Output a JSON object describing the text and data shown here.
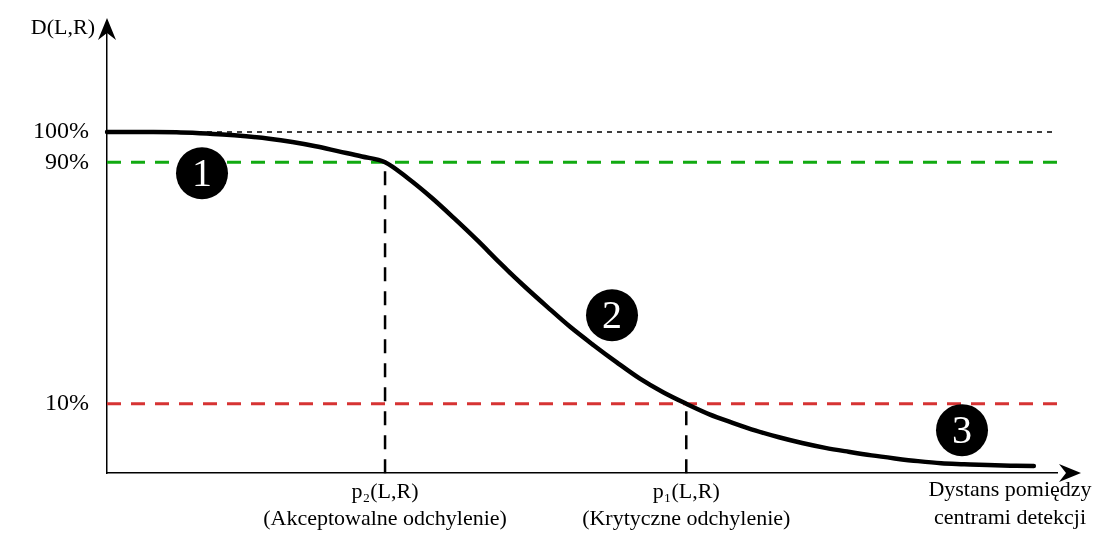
{
  "chart_data": {
    "type": "line",
    "xlabel": "Dystans pomiędzy\ncentrami detekcji",
    "ylabel": "D(L,R)",
    "categories": [
      null,
      null,
      null,
      null,
      null,
      null,
      null,
      null,
      null,
      null,
      null,
      null,
      "p₂(L,R)\n(Akceptowalne odchylenie)",
      null,
      null,
      null,
      null,
      null,
      null,
      null,
      null,
      null,
      null,
      null,
      null,
      "p₁(L,R)\n(Krytyczne odchylenie)",
      null,
      null,
      null,
      null,
      null,
      null,
      null,
      null,
      null,
      null,
      null,
      null,
      null,
      null,
      null,
      null
    ],
    "series": [
      {
        "color": "#000000",
        "values": [
          100,
          100,
          100,
          99.9,
          99.6,
          99.2,
          98.6,
          97.8,
          96.7,
          95.3,
          93.6,
          91.9,
          90,
          84.6,
          78.3,
          71.3,
          64.0,
          56.3,
          49.0,
          42.1,
          35.4,
          29.4,
          23.7,
          18.3,
          13.8,
          10,
          6.5,
          3.7,
          1.1,
          -1.1,
          -3.0,
          -4.6,
          -5.9,
          -7.1,
          -8.1,
          -9.0,
          -9.7,
          -10.0,
          -10.3,
          -10.5,
          -10.6,
          null
        ]
      }
    ],
    "ylim": [
      -13,
      133
    ],
    "yticks": [
      {
        "value": 100,
        "label": "100%"
      },
      {
        "value": 90,
        "label": "90%"
      },
      {
        "value": 10,
        "label": "10%"
      }
    ],
    "ref_lines": [
      {
        "axis": "y",
        "value": 100,
        "color": "#000000",
        "line_style": "dotted"
      },
      {
        "axis": "y",
        "value": 90,
        "color": "#11aa11",
        "line_style": "dashed"
      },
      {
        "axis": "y",
        "value": 10,
        "color": "#d63333",
        "line_style": "dashed"
      },
      {
        "axis": "x",
        "value": "p₂(L,R)\n(Akceptowalne odchylenie)",
        "color": "#000000",
        "line_style": "dashed"
      },
      {
        "axis": "x",
        "value": "p₁(L,R)\n(Krytyczne odchylenie)",
        "color": "#000000",
        "line_style": "dashed"
      }
    ],
    "annotations": [
      "1",
      "2",
      "3"
    ],
    "grid": false,
    "legend": false,
    "marker": "none",
    "line_style": "solid"
  }
}
